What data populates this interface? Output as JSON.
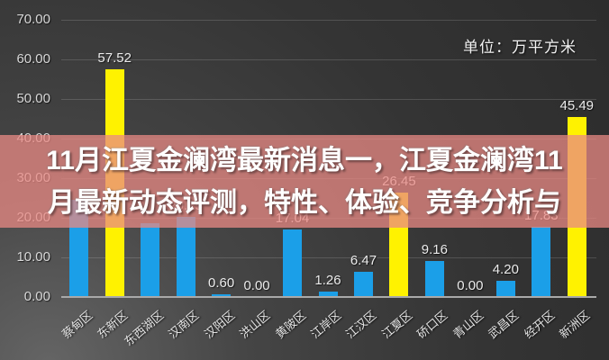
{
  "overlay": {
    "line1": "11月江夏金澜湾最新消息一，江夏金澜湾11",
    "line2": "月最新动态评测，特性、体验、竞争分析与",
    "band_hex": "#e98a84",
    "band_opacity": 0.75,
    "band_rgba": "rgba(233,138,132,0.75)"
  },
  "chart_data": {
    "type": "bar",
    "unit_label": "单位：万平方米",
    "categories": [
      "蔡甸区",
      "东新区",
      "东西湖区",
      "汉南区",
      "汉阳区",
      "洪山区",
      "黄陂区",
      "江岸区",
      "江汉区",
      "江夏区",
      "硚口区",
      "青山区",
      "武昌区",
      "经开区",
      "新洲区"
    ],
    "values": [
      24.5,
      57.52,
      18.6,
      20.15,
      0.6,
      0.0,
      17.04,
      1.26,
      6.47,
      26.45,
      9.16,
      0.0,
      4.2,
      17.83,
      45.49
    ],
    "value_labels": [
      "",
      "57.52",
      "",
      "20.15",
      "0.60",
      "0.00",
      "17.04",
      "1.26",
      "6.47",
      "26.45",
      "9.16",
      "0.00",
      "4.20",
      "17.83",
      "45.49"
    ],
    "bar_colors": [
      "blue",
      "yellow",
      "blue",
      "blue",
      "blue",
      "blue",
      "blue",
      "blue",
      "blue",
      "yellow",
      "blue",
      "blue",
      "blue",
      "blue",
      "yellow"
    ],
    "palette": {
      "blue": "#1b9fe8",
      "yellow": "#fff200"
    },
    "y_ticks": [
      0,
      10,
      20,
      30,
      40,
      50,
      60,
      70
    ],
    "y_tick_labels": [
      "0.00",
      "10.00",
      "20.00",
      "30.00",
      "40.00",
      "50.00",
      "60.00",
      "70.00"
    ],
    "ylim": [
      0,
      70
    ],
    "grid": true,
    "legend": "none",
    "note_hidden_labels": "values for 蔡甸区 and 东西湖区 estimated from bar heights; their numeric labels are hidden behind the overlay banner"
  }
}
